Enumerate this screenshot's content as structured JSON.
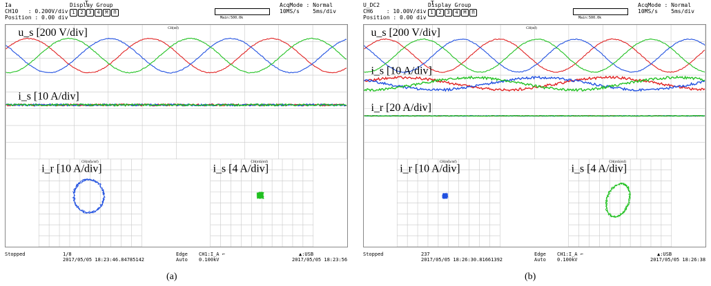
{
  "panels": [
    {
      "id": "a",
      "header": {
        "channel_line1": "Ia",
        "channel_line2": "CH10   : 0.200V/div",
        "channel_line3": "Position : 0.00 div",
        "display_group": "Display Group",
        "buttons": [
          "1",
          "2",
          "3",
          "4",
          "M",
          "Π"
        ],
        "zoom_label": "Main:500.0k",
        "acq_line1": "AcqMode : Normal",
        "acq_line2": "10MS/s    5ms/div"
      },
      "trigger_marker": "T",
      "labels": {
        "us": "u_s [200 V/div]",
        "is": "i_s [10 A/div]",
        "ir_xy": "i_r [10 A/div]",
        "is_xy": "i_s [4 A/div]",
        "math_top": "CH(mf)",
        "math_left": "CH(mfa/mf)",
        "math_right": "CH(mfa/mf)"
      },
      "footer": {
        "status": "Stopped",
        "count": "1/8",
        "timestamp1": "2017/05/05 18:23:46.84785142",
        "edge": "Edge",
        "auto": "Auto",
        "trig_src": "CH1:I_A ⌐",
        "trig_level": "0.100kV",
        "usb": "▲:USB",
        "timestamp2": "2017/05/05 18:23:56"
      },
      "caption": "(a)"
    },
    {
      "id": "b",
      "header": {
        "channel_line1": "U_DC2",
        "channel_line2": "CH6    : 10.00V/div",
        "channel_line3": "Position : 0.00 div",
        "display_group": "Display Group",
        "buttons": [
          "1",
          "2",
          "3",
          "4",
          "M",
          "Π"
        ],
        "zoom_label": "Main:500.0k",
        "acq_line1": "AcqMode : Normal",
        "acq_line2": "10MS/s    5ms/div"
      },
      "trigger_marker": "T",
      "labels": {
        "us": "u_s [200 V/div]",
        "is": "i_s [10 A/div]",
        "ir": "i_r [20 A/div]",
        "ir_xy": "i_r [10 A/div]",
        "is_xy": "i_s [4 A/div]",
        "math_top": "CH(mf)",
        "math_left": "CH(mfa/mf)",
        "math_right": "CH(mfa/mf)"
      },
      "footer": {
        "status": "Stopped",
        "count": "237",
        "timestamp1": "2017/05/05 18:26:30.81661392",
        "edge": "Edge",
        "auto": "Auto",
        "trig_src": "CH1:I_A ⌐",
        "trig_level": "0.100kV",
        "usb": "▲:USB",
        "timestamp2": "2017/05/05 18:26:38"
      },
      "caption": "(b)"
    }
  ],
  "colors": {
    "phase_a": "#e02020",
    "phase_b": "#2050e0",
    "phase_c": "#20c020",
    "grid": "#bbbbbb"
  }
}
